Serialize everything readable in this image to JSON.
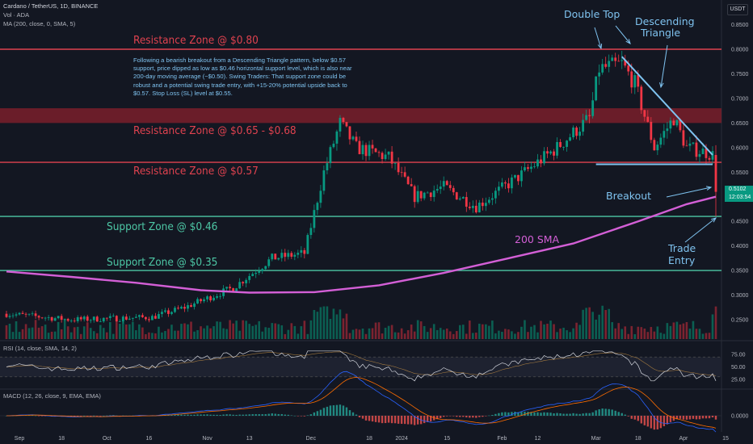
{
  "header": {
    "title": "Cardano / TetherUS, 1D, BINANCE",
    "vol_label": "Vol · ADA",
    "ma_label": "MA (200, close, 0, SMA, 5)",
    "rsi_label": "RSI (14, close, SMA, 14, 2)",
    "macd_label": "MACD (12, 26, close, 9, EMA, EMA)"
  },
  "currency": "USDT",
  "current_price": "0.5102",
  "countdown": "12:03:54",
  "annotations": {
    "double_top": "Double Top",
    "descending_triangle_1": "Descending",
    "descending_triangle_2": "Triangle",
    "breakout": "Breakout",
    "trade_entry_1": "Trade",
    "trade_entry_2": "Entry",
    "sma_label": "200 SMA",
    "note": "Following a bearish breakout from a Descending Triangle pattern, below $0.57 support, price dipped as low as $0.46 horizontal support level, which is also near 200-day moving average (~$0.50). Swing Traders: That support zone could be robust and a potential swing trade entry, with +15-20% potential upside back to $0.57. Stop Loss (SL) level at $0.55."
  },
  "zones": [
    {
      "label": "Resistance Zone @ $0.80",
      "price": 0.8,
      "kind": "resistance"
    },
    {
      "label": "Resistance Zone @ $0.65 - $0.68",
      "price_low": 0.65,
      "price_high": 0.68,
      "kind": "resistance-band"
    },
    {
      "label": "Resistance Zone @ $0.57",
      "price": 0.57,
      "kind": "resistance"
    },
    {
      "label": "Support Zone @ $0.46",
      "price": 0.46,
      "kind": "support"
    },
    {
      "label": "Support Zone @ $0.35",
      "price": 0.35,
      "kind": "support"
    }
  ],
  "colors": {
    "background": "#131722",
    "up": "#089981",
    "down": "#f23645",
    "resistance": "#e0424f",
    "support": "#4dc7a5",
    "sma": "#d35fd6",
    "annotation": "#7fc3f0"
  },
  "chart_data": [
    {
      "type": "candlestick",
      "title": "Cardano / TetherUS, 1D, BINANCE",
      "ylim": [
        0.22,
        0.86
      ],
      "price_axis_ticks": [
        "0.8500",
        "0.8000",
        "0.7500",
        "0.7000",
        "0.6500",
        "0.6000",
        "0.5500",
        "0.5000",
        "0.4500",
        "0.4000",
        "0.3500",
        "0.3000",
        "0.2500"
      ],
      "price_axis_values": [
        0.85,
        0.8,
        0.75,
        0.7,
        0.65,
        0.6,
        0.55,
        0.5,
        0.45,
        0.4,
        0.35,
        0.3,
        0.25
      ],
      "x_ticks": [
        "Sep",
        "18",
        "Oct",
        "16",
        "Nov",
        "13",
        "Dec",
        "18",
        "2024",
        "15",
        "Feb",
        "12",
        "Mar",
        "18",
        "Apr",
        "15"
      ],
      "x_tick_days": [
        4,
        17,
        31,
        44,
        62,
        75,
        94,
        112,
        122,
        136,
        153,
        164,
        182,
        195,
        209,
        222
      ],
      "key_closes": [
        {
          "day": 0,
          "close": 0.262
        },
        {
          "day": 20,
          "close": 0.25
        },
        {
          "day": 45,
          "close": 0.255
        },
        {
          "day": 55,
          "close": 0.275
        },
        {
          "day": 70,
          "close": 0.315
        },
        {
          "day": 82,
          "close": 0.375
        },
        {
          "day": 92,
          "close": 0.385
        },
        {
          "day": 98,
          "close": 0.55
        },
        {
          "day": 103,
          "close": 0.65
        },
        {
          "day": 108,
          "close": 0.6
        },
        {
          "day": 118,
          "close": 0.58
        },
        {
          "day": 126,
          "close": 0.5
        },
        {
          "day": 135,
          "close": 0.52
        },
        {
          "day": 145,
          "close": 0.48
        },
        {
          "day": 158,
          "close": 0.54
        },
        {
          "day": 170,
          "close": 0.6
        },
        {
          "day": 180,
          "close": 0.66
        },
        {
          "day": 183,
          "close": 0.76
        },
        {
          "day": 190,
          "close": 0.77
        },
        {
          "day": 194,
          "close": 0.73
        },
        {
          "day": 200,
          "close": 0.6
        },
        {
          "day": 206,
          "close": 0.66
        },
        {
          "day": 210,
          "close": 0.6
        },
        {
          "day": 216,
          "close": 0.59
        },
        {
          "day": 218,
          "close": 0.585
        },
        {
          "day": 219,
          "close": 0.51
        }
      ],
      "sma200": [
        {
          "day": 0,
          "value": 0.348
        },
        {
          "day": 20,
          "value": 0.337
        },
        {
          "day": 40,
          "value": 0.325
        },
        {
          "day": 60,
          "value": 0.31
        },
        {
          "day": 75,
          "value": 0.305
        },
        {
          "day": 95,
          "value": 0.306
        },
        {
          "day": 115,
          "value": 0.32
        },
        {
          "day": 135,
          "value": 0.345
        },
        {
          "day": 155,
          "value": 0.375
        },
        {
          "day": 175,
          "value": 0.405
        },
        {
          "day": 195,
          "value": 0.45
        },
        {
          "day": 210,
          "value": 0.485
        },
        {
          "day": 219,
          "value": 0.5
        }
      ]
    },
    {
      "type": "line",
      "title": "RSI (14, close, SMA, 14, 2)",
      "ylim": [
        20,
        85
      ],
      "y_ticks": [
        "75.00",
        "50.00",
        "25.00"
      ],
      "band": [
        30,
        70
      ]
    },
    {
      "type": "bar",
      "title": "MACD (12, 26, close, 9, EMA, EMA)",
      "y_ticks": [
        "0.0000"
      ]
    }
  ]
}
